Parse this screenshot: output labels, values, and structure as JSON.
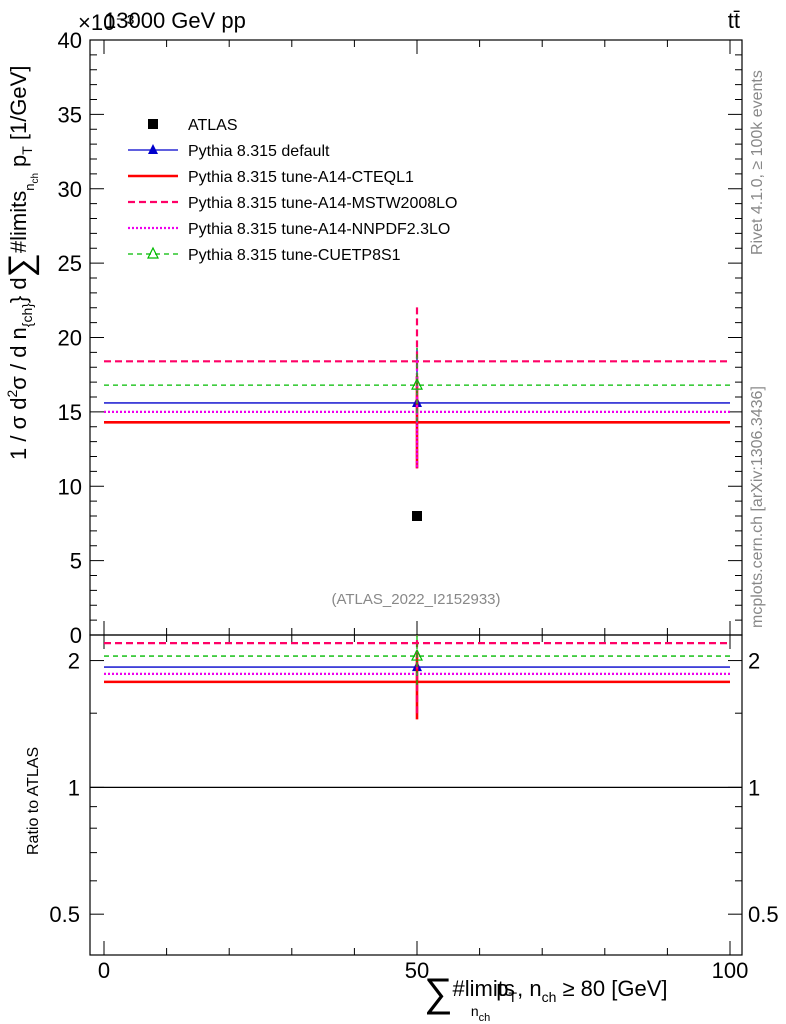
{
  "header": {
    "energy_label": "13000 GeV pp",
    "process_label": "tt̄",
    "multiplier_label": "×10⁻³"
  },
  "side_text": {
    "rivet": "Rivet 4.1.0, ≥ 100k events",
    "mcplots": "mcplots.cern.ch [arXiv:1306.3436]"
  },
  "analysis_label": "(ATLAS_2022_I2152933)",
  "chart_data": [
    {
      "type": "line",
      "panel": "main",
      "ylabel": "1 / σ d²σ / d n_{ch} d ∑ #limits_{n_{ch}} p_T [1/GeV]",
      "ylabel_parts": {
        "prefix": "1 / σ d",
        "sup": "2",
        "mid": "σ / d n",
        "sub": "{ch}",
        "suffix": "} d",
        "sum": "∑",
        "limits": "#limits",
        "lim_sub": "n",
        "lim_subsub": "ch",
        "pt": "p",
        "pt_sub": "T",
        "unit": "[1/GeV]"
      },
      "xlim": [
        0,
        100
      ],
      "ylim": [
        0,
        40
      ],
      "y_multiplier": "×10⁻³",
      "x_ticks": [
        0,
        50,
        100
      ],
      "y_ticks": [
        0,
        5,
        10,
        15,
        20,
        25,
        30,
        35,
        40
      ],
      "bin": {
        "x": 50,
        "xlow": 0,
        "xhigh": 100
      },
      "legend_position": "top-left",
      "series": [
        {
          "name": "ATLAS",
          "color": "#000000",
          "style": "marker",
          "marker": "square",
          "x": 50,
          "y": 8.0,
          "yerr": [
            0,
            0
          ]
        },
        {
          "name": "Pythia 8.315 default",
          "color": "#0000cc",
          "style": "solid-thin",
          "marker": "triangle",
          "x": 50,
          "y": 15.6,
          "yerr": [
            3.7,
            3.7
          ]
        },
        {
          "name": "Pythia 8.315 tune-A14-CTEQL1",
          "color": "#ff0000",
          "style": "solid-thick",
          "marker": "none",
          "x": 50,
          "y": 14.3,
          "yerr": [
            3.1,
            3.1
          ]
        },
        {
          "name": "Pythia 8.315 tune-A14-MSTW2008LO",
          "color": "#ff0066",
          "style": "dashed",
          "marker": "none",
          "x": 50,
          "y": 18.4,
          "yerr": [
            7.2,
            3.7
          ]
        },
        {
          "name": "Pythia 8.315 tune-A14-NNPDF2.3LO",
          "color": "#ee00ee",
          "style": "dotted",
          "marker": "none",
          "x": 50,
          "y": 15.0,
          "yerr": [
            3.7,
            3.7
          ]
        },
        {
          "name": "Pythia 8.315 tune-CUETP8S1",
          "color": "#00bb00",
          "style": "dashed-thin",
          "marker": "open-triangle",
          "x": 50,
          "y": 16.8,
          "yerr": [
            2.5,
            2.5
          ]
        }
      ]
    },
    {
      "type": "line",
      "panel": "ratio",
      "ylabel": "Ratio to ATLAS",
      "xlabel": "∑ #limits_{n_{ch}} p_T, n_ch ≥ 80 [GeV]",
      "xlabel_parts": {
        "sum": "∑",
        "limits": "#limits",
        "sub": "n",
        "subsub": "ch",
        "pt": "p",
        "pt_sub": "T",
        "rest": ", n",
        "rest_sub": "ch",
        "cut": " ≥ 80 [GeV]"
      },
      "xlim": [
        0,
        100
      ],
      "ylim": [
        0.4,
        2.3
      ],
      "y_scale": "log",
      "x_ticks": [
        0,
        50,
        100
      ],
      "y_ticks": [
        0.5,
        1,
        2
      ],
      "y_tick_labels": [
        "0.5",
        "1",
        "2"
      ],
      "reference": 1,
      "series": [
        {
          "name": "Pythia 8.315 default",
          "color": "#0000cc",
          "y": 1.93
        },
        {
          "name": "Pythia 8.315 tune-A14-CTEQL1",
          "color": "#ff0000",
          "y": 1.78,
          "yerr": [
            0.33,
            0.33
          ]
        },
        {
          "name": "Pythia 8.315 tune-A14-MSTW2008LO",
          "color": "#ff0066",
          "y": 2.2,
          "yerr": [
            0.7,
            0.3
          ]
        },
        {
          "name": "Pythia 8.315 tune-A14-NNPDF2.3LO",
          "color": "#ee00ee",
          "y": 1.86
        },
        {
          "name": "Pythia 8.315 tune-CUETP8S1",
          "color": "#00bb00",
          "y": 2.05,
          "yerr": [
            0.3,
            0.3
          ]
        }
      ]
    }
  ]
}
